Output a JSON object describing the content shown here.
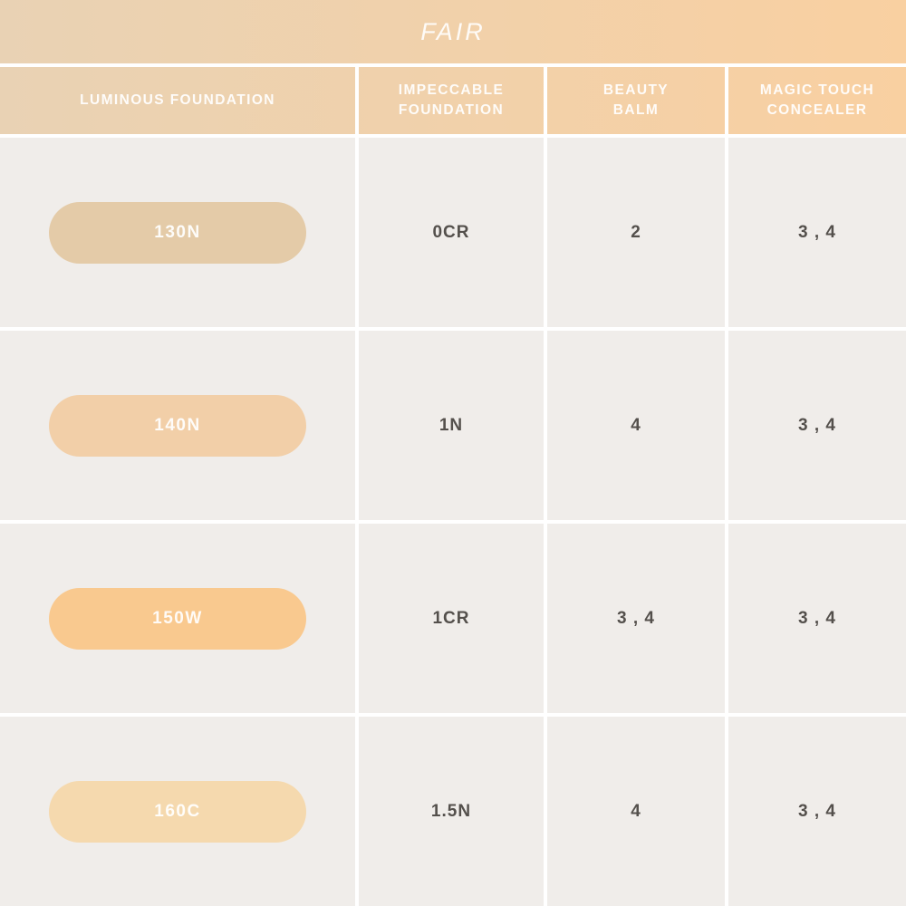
{
  "title": "FAIR",
  "header": {
    "columns": [
      "LUMINOUS FOUNDATION",
      "IMPECCABLE\nFOUNDATION",
      "BEAUTY\nBALM",
      "MAGIC TOUCH\nCONCEALER"
    ]
  },
  "rows": [
    {
      "shade": "130N",
      "swatch_color": "#e4cba8",
      "impeccable_foundation": "0CR",
      "beauty_balm": "2",
      "magic_touch_concealer": "3 , 4"
    },
    {
      "shade": "140N",
      "swatch_color": "#f2cfa8",
      "impeccable_foundation": "1N",
      "beauty_balm": "4",
      "magic_touch_concealer": "3 , 4"
    },
    {
      "shade": "150W",
      "swatch_color": "#f9c98f",
      "impeccable_foundation": "1CR",
      "beauty_balm": "3 , 4",
      "magic_touch_concealer": "3 , 4"
    },
    {
      "shade": "160C",
      "swatch_color": "#f5d9ae",
      "impeccable_foundation": "1.5N",
      "beauty_balm": "4",
      "magic_touch_concealer": "3 , 4"
    }
  ],
  "colors": {
    "band_left": "#e9d2b4",
    "band_right": "#f9d0a1",
    "cell_bg": "#f0edea",
    "value_text": "#54504c",
    "header_text": "#ffffff"
  },
  "chart_data": {
    "type": "table",
    "title": "FAIR",
    "columns": [
      "LUMINOUS FOUNDATION",
      "IMPECCABLE FOUNDATION",
      "BEAUTY BALM",
      "MAGIC TOUCH CONCEALER"
    ],
    "rows": [
      [
        "130N",
        "0CR",
        "2",
        "3 , 4"
      ],
      [
        "140N",
        "1N",
        "4",
        "3 , 4"
      ],
      [
        "150W",
        "1CR",
        "3 , 4",
        "3 , 4"
      ],
      [
        "160C",
        "1.5N",
        "4",
        "3 , 4"
      ]
    ],
    "swatch_colors": [
      "#e4cba8",
      "#f2cfa8",
      "#f9c98f",
      "#f5d9ae"
    ]
  }
}
